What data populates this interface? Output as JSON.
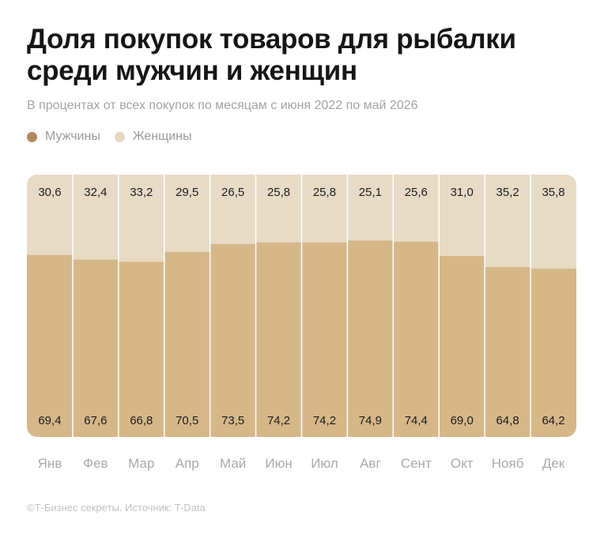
{
  "title": "Доля покупок товаров для рыбалки среди мужчин и женщин",
  "subtitle": "В процентах от всех покупок по месяцам с июня 2022 по май 2026",
  "footer": "©Т-Бизнес секреты. Источник: T-Data",
  "colors": {
    "men": "#d6b788",
    "women": "#e7dbc6",
    "men_dot": "#b08a5e",
    "women_dot": "#e5d7c0",
    "separator": "#ffffff"
  },
  "chart_data": {
    "type": "bar",
    "stacked": true,
    "normalized_to": 100,
    "legend": "top-left",
    "grid": false,
    "ylim": [
      0,
      100
    ],
    "categories": [
      "Янв",
      "Фев",
      "Мар",
      "Апр",
      "Май",
      "Июн",
      "Июл",
      "Авг",
      "Сент",
      "Окт",
      "Нояб",
      "Дек"
    ],
    "series": [
      {
        "name": "Мужчины",
        "values": [
          69.4,
          67.6,
          66.8,
          70.5,
          73.5,
          74.2,
          74.2,
          74.9,
          74.4,
          69.0,
          64.8,
          64.2
        ],
        "labels": [
          "69,4",
          "67,6",
          "66,8",
          "70,5",
          "73,5",
          "74,2",
          "74,2",
          "74,9",
          "74,4",
          "69,0",
          "64,8",
          "64,2"
        ]
      },
      {
        "name": "Женщины",
        "values": [
          30.6,
          32.4,
          33.2,
          29.5,
          26.5,
          25.8,
          25.8,
          25.1,
          25.6,
          31.0,
          35.2,
          35.8
        ],
        "labels": [
          "30,6",
          "32,4",
          "33,2",
          "29,5",
          "26,5",
          "25,8",
          "25,8",
          "25,1",
          "25,6",
          "31,0",
          "35,2",
          "35,8"
        ]
      }
    ]
  }
}
